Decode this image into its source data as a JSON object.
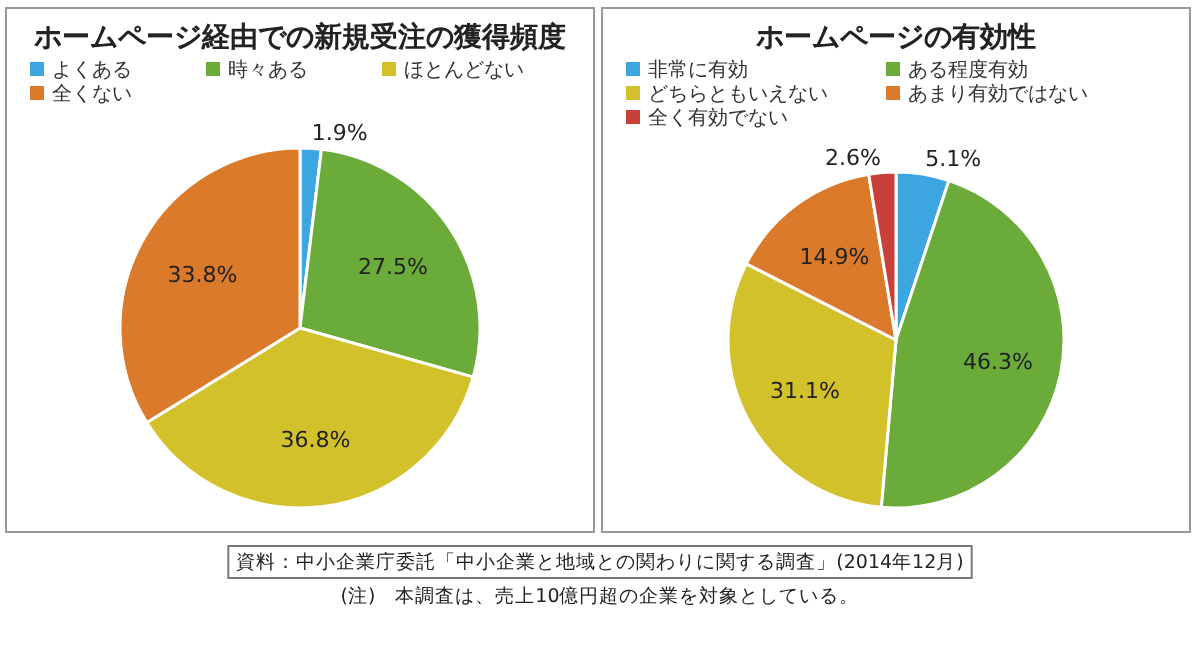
{
  "chart_data": [
    {
      "type": "pie",
      "title": "ホームページ経由での新規受注の獲得頻度",
      "categories": [
        "よくある",
        "時々ある",
        "ほとんどない",
        "全くない"
      ],
      "values": [
        1.9,
        27.5,
        36.8,
        33.8
      ],
      "colors": [
        "#3ba6e0",
        "#6aab3a",
        "#d3c12c",
        "#dc7a2b"
      ],
      "value_labels": [
        "1.9%",
        "27.5%",
        "36.8%",
        "33.8%"
      ],
      "legend": "top"
    },
    {
      "type": "pie",
      "title": "ホームページの有効性",
      "categories": [
        "非常に有効",
        "ある程度有効",
        "どちらともいえない",
        "あまり有効ではない",
        "全く有効でない"
      ],
      "values": [
        5.1,
        46.3,
        31.1,
        14.9,
        2.6
      ],
      "colors": [
        "#3ba6e0",
        "#6aab3a",
        "#d3c12c",
        "#dc7a2b",
        "#c9403b"
      ],
      "value_labels": [
        "5.1%",
        "46.3%",
        "31.1%",
        "14.9%",
        "2.6%"
      ],
      "legend": "top",
      "annotations": [
        "資料：中小企業庁委託「中小企業と地域との関わりに関する調査」(2014年12月)",
        "(注)　本調査は、売上10億円超の企業を対象としている。"
      ]
    }
  ]
}
